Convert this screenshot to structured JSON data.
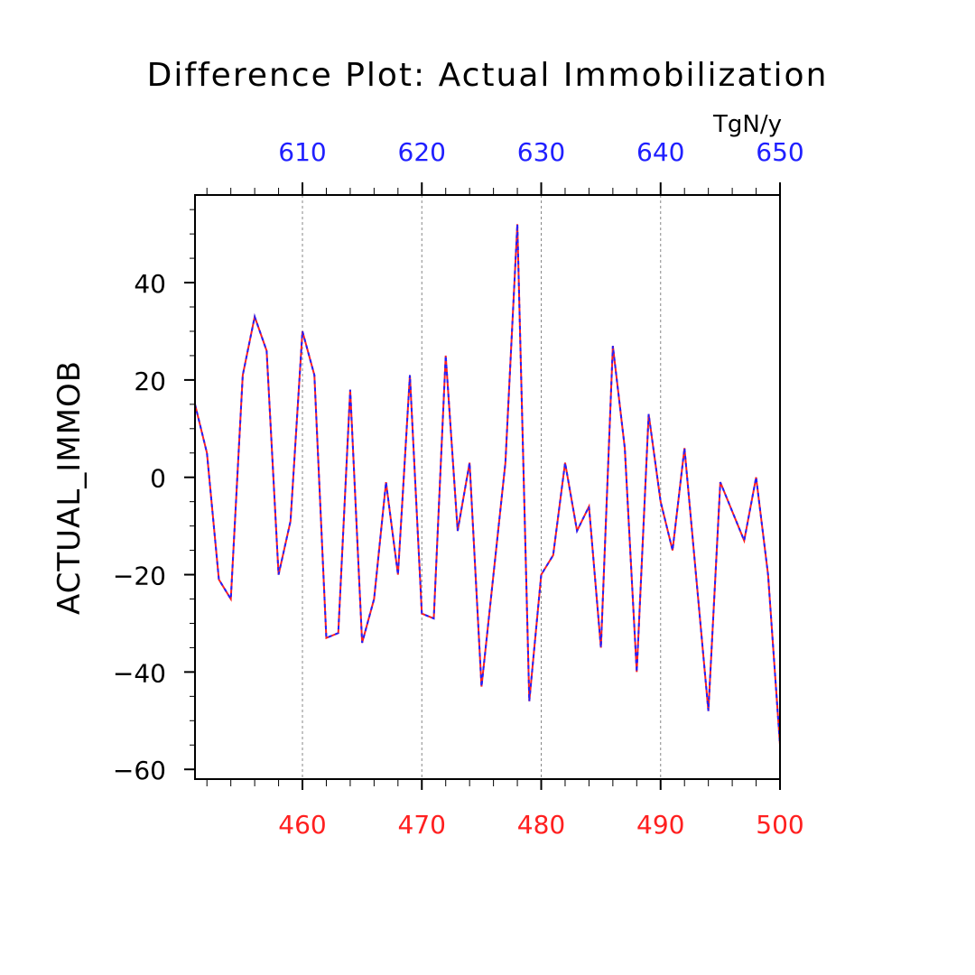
{
  "chart_data": {
    "type": "line",
    "title": "Difference Plot: Actual Immobilization",
    "units": "TgN/y",
    "ylabel": "ACTUAL_IMMOB",
    "ylim": [
      -62,
      58
    ],
    "y_ticks": [
      -60,
      -40,
      -20,
      0,
      20,
      40
    ],
    "y_tick_labels": [
      "−60",
      "−40",
      "−20",
      "0",
      "20",
      "40"
    ],
    "bottom_axis": {
      "color": "#ff2020",
      "range": [
        451,
        500
      ],
      "ticks": [
        460,
        470,
        480,
        490,
        500
      ],
      "tick_labels": [
        "460",
        "470",
        "480",
        "490",
        "500"
      ]
    },
    "top_axis": {
      "color": "#2020ff",
      "range": [
        601,
        650
      ],
      "ticks": [
        610,
        620,
        630,
        640,
        650
      ],
      "tick_labels": [
        "610",
        "620",
        "630",
        "640",
        "650"
      ]
    },
    "grid": "vertical-dashed",
    "series": [
      {
        "name": "red series (bottom axis)",
        "color": "#ff2020",
        "style": "solid",
        "x": [
          451,
          452,
          453,
          454,
          455,
          456,
          457,
          458,
          459,
          460,
          461,
          462,
          463,
          464,
          465,
          466,
          467,
          468,
          469,
          470,
          471,
          472,
          473,
          474,
          475,
          476,
          477,
          478,
          479,
          480,
          481,
          482,
          483,
          484,
          485,
          486,
          487,
          488,
          489,
          490,
          491,
          492,
          493,
          494,
          495,
          496,
          497,
          498,
          499,
          500
        ],
        "values": [
          15,
          5,
          -21,
          -25,
          21,
          33,
          26,
          -20,
          -9,
          30,
          21,
          -33,
          -32,
          18,
          -34,
          -25,
          -1,
          -20,
          21,
          -28,
          -29,
          25,
          -11,
          3,
          -43,
          -20,
          3,
          52,
          -46,
          -20,
          -16,
          3,
          -11,
          -6,
          -35,
          27,
          6,
          -40,
          13,
          -5,
          -15,
          6,
          -21,
          -48,
          -1,
          -7,
          -13,
          0,
          -20,
          -55
        ]
      },
      {
        "name": "blue series (top axis)",
        "color": "#2020ff",
        "style": "dashed",
        "x": [
          601,
          602,
          603,
          604,
          605,
          606,
          607,
          608,
          609,
          610,
          611,
          612,
          613,
          614,
          615,
          616,
          617,
          618,
          619,
          620,
          621,
          622,
          623,
          624,
          625,
          626,
          627,
          628,
          629,
          630,
          631,
          632,
          633,
          634,
          635,
          636,
          637,
          638,
          639,
          640,
          641,
          642,
          643,
          644,
          645,
          646,
          647,
          648,
          649,
          650
        ],
        "values": [
          15,
          5,
          -21,
          -25,
          21,
          33,
          26,
          -20,
          -9,
          30,
          21,
          -33,
          -32,
          18,
          -34,
          -25,
          -1,
          -20,
          21,
          -28,
          -29,
          25,
          -11,
          3,
          -43,
          -20,
          3,
          52,
          -46,
          -20,
          -16,
          3,
          -11,
          -6,
          -35,
          27,
          6,
          -40,
          13,
          -5,
          -15,
          6,
          -21,
          -48,
          -1,
          -7,
          -13,
          0,
          -20,
          -55
        ]
      }
    ]
  }
}
